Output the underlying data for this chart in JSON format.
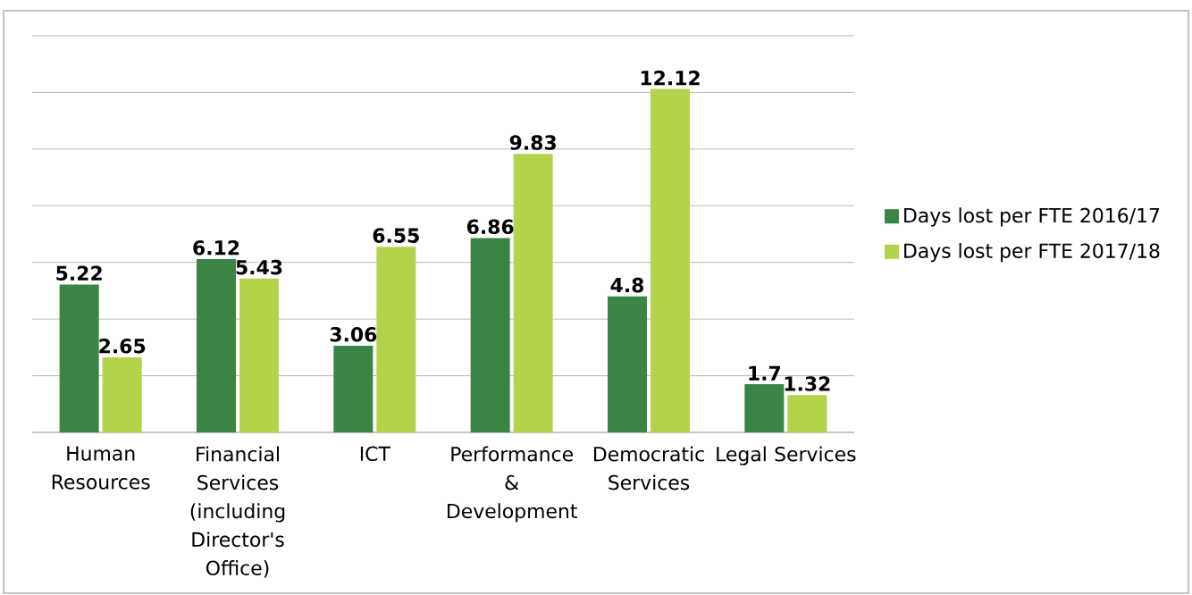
{
  "chart_data": {
    "type": "bar",
    "categories": [
      "Human Resources",
      "Financial Services (including Director's Office)",
      "ICT",
      "Performance & Development",
      "Democratic Services",
      "Legal Services"
    ],
    "series": [
      {
        "name": "Days lost per FTE 2016/17",
        "color": "#3a8444",
        "values": [
          5.22,
          6.12,
          3.06,
          6.86,
          4.8,
          1.7
        ]
      },
      {
        "name": "Days lost per FTE 2017/18",
        "color": "#b3d34a",
        "values": [
          2.65,
          5.43,
          6.55,
          9.83,
          12.12,
          1.32
        ]
      }
    ],
    "ylim": [
      0,
      14
    ],
    "tick_labels": "x",
    "grid": "y",
    "legend": "right",
    "data_labels": true
  }
}
